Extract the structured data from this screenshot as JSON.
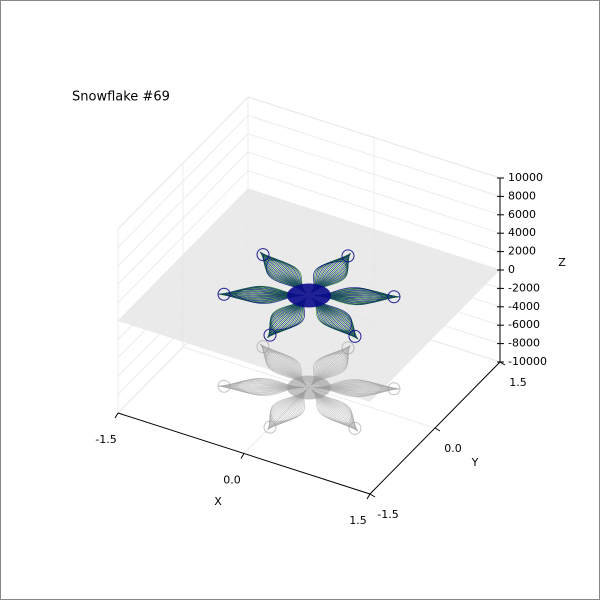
{
  "chart_data": {
    "type": "surface3d",
    "title": "Snowflake #69",
    "xlabel": "X",
    "ylabel": "Y",
    "zlabel": "Z",
    "xlim": [
      -1.5,
      1.5
    ],
    "ylim": [
      -1.5,
      1.5
    ],
    "zlim": [
      -10000,
      10000
    ],
    "xticks": [
      -1.5,
      {
        "value": 0,
        "label": "0.0"
      },
      1.5
    ],
    "yticks": [
      -1.5,
      {
        "value": 0,
        "label": "0.0"
      },
      1.5
    ],
    "zticks": [
      -10000,
      -8000,
      -6000,
      -4000,
      -2000,
      0,
      2000,
      4000,
      6000,
      8000,
      10000
    ]
  }
}
